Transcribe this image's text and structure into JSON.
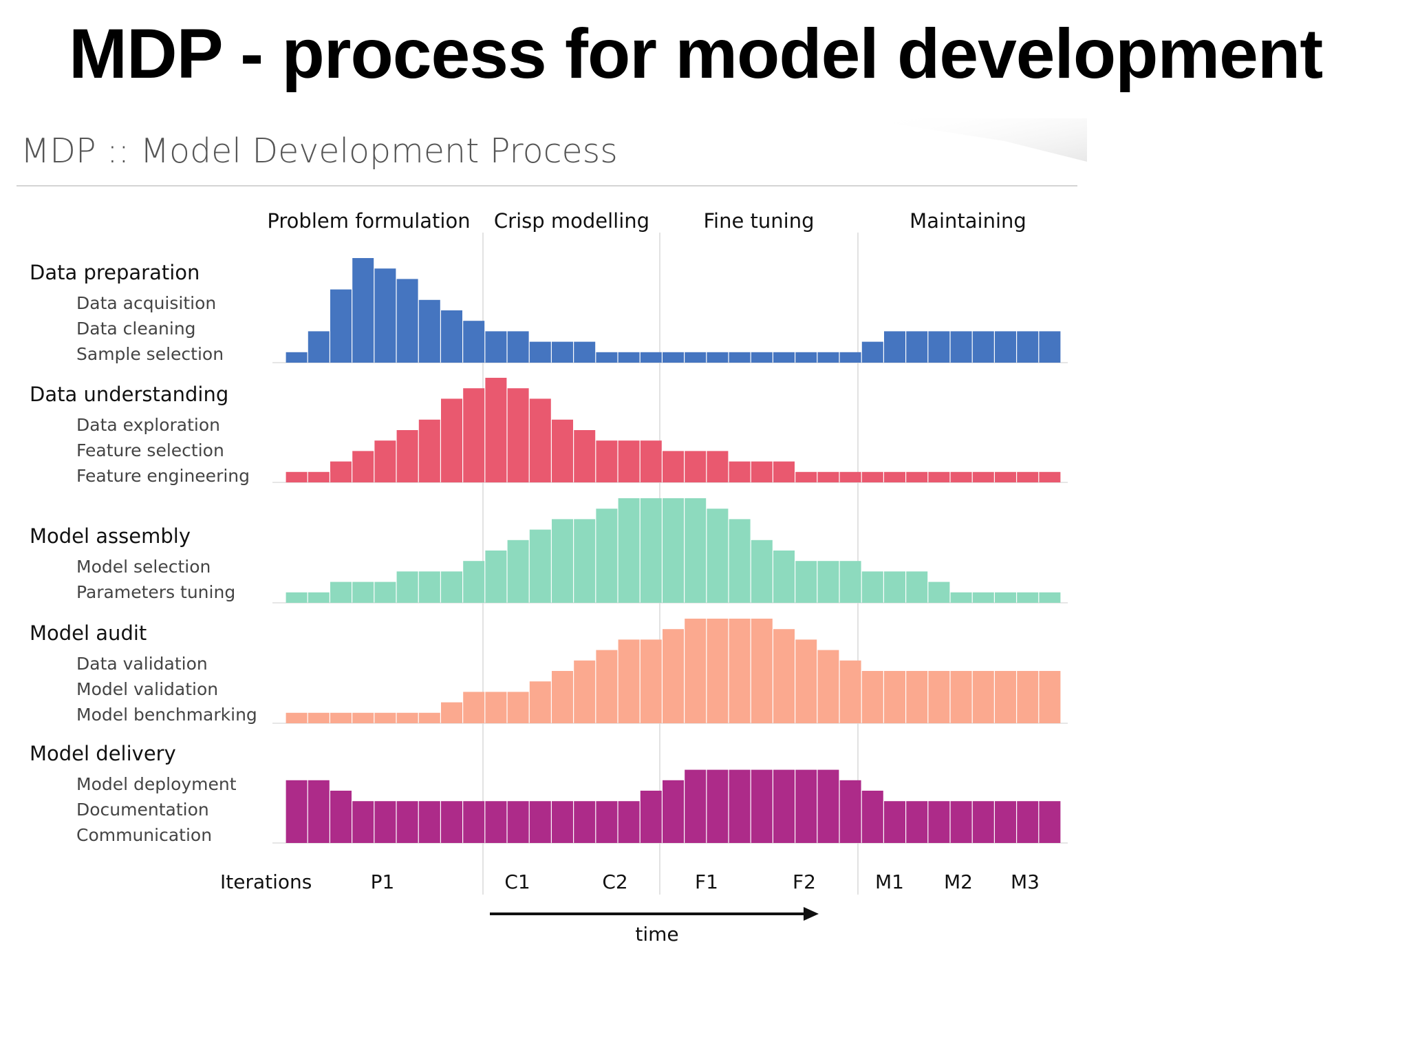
{
  "slide": {
    "title": "MDP - process for model development"
  },
  "chart_data": {
    "type": "bar",
    "title": "MDP :: Model Development Process",
    "phases": [
      "Problem formulation",
      "Crisp modelling",
      "Fine tuning",
      "Maintaining"
    ],
    "iterations_label": "Iterations",
    "iterations": [
      "P1",
      "C1",
      "C2",
      "F1",
      "F2",
      "M1",
      "M2",
      "M3"
    ],
    "time_label": "time",
    "grid": false,
    "legend": "none",
    "categories": [
      "1",
      "2",
      "3",
      "4",
      "5",
      "6",
      "7",
      "8",
      "9",
      "10",
      "11",
      "12",
      "13",
      "14",
      "15",
      "16",
      "17",
      "18",
      "19",
      "20",
      "21",
      "22",
      "23",
      "24",
      "25",
      "26",
      "27",
      "28",
      "29",
      "30",
      "31",
      "32",
      "33",
      "34",
      "35"
    ],
    "series": [
      {
        "name": "Data preparation",
        "details": [
          "Data acquisition",
          "Data cleaning",
          "Sample selection"
        ],
        "color": "#4575c0",
        "values": [
          1,
          3,
          7,
          10,
          9,
          8,
          6,
          5,
          4,
          3,
          3,
          2,
          2,
          2,
          1,
          1,
          1,
          1,
          1,
          1,
          1,
          1,
          1,
          1,
          1,
          1,
          2,
          3,
          3,
          3,
          3,
          3,
          3,
          3,
          3
        ]
      },
      {
        "name": "Data understanding",
        "details": [
          "Data exploration",
          "Feature selection",
          "Feature engineering"
        ],
        "color": "#e9596f",
        "values": [
          1,
          1,
          2,
          3,
          4,
          5,
          6,
          8,
          9,
          10,
          9,
          8,
          6,
          5,
          4,
          4,
          4,
          3,
          3,
          3,
          2,
          2,
          2,
          1,
          1,
          1,
          1,
          1,
          1,
          1,
          1,
          1,
          1,
          1,
          1
        ]
      },
      {
        "name": "Model assembly",
        "details": [
          "Model selection",
          "Parameters tuning"
        ],
        "color": "#8ddabe",
        "values": [
          1,
          1,
          2,
          2,
          2,
          3,
          3,
          3,
          4,
          5,
          6,
          7,
          8,
          8,
          9,
          10,
          10,
          10,
          10,
          9,
          8,
          6,
          5,
          4,
          4,
          4,
          3,
          3,
          3,
          2,
          1,
          1,
          1,
          1,
          1
        ]
      },
      {
        "name": "Model audit",
        "details": [
          "Data validation",
          "Model validation",
          "Model benchmarking"
        ],
        "color": "#fba98f",
        "values": [
          1,
          1,
          1,
          1,
          1,
          1,
          1,
          2,
          3,
          3,
          3,
          4,
          5,
          6,
          7,
          8,
          8,
          9,
          10,
          10,
          10,
          10,
          9,
          8,
          7,
          6,
          5,
          5,
          5,
          5,
          5,
          5,
          5,
          5,
          5
        ]
      },
      {
        "name": "Model delivery",
        "details": [
          "Model deployment",
          "Documentation",
          "Communication"
        ],
        "color": "#ad2b89",
        "values": [
          6,
          6,
          5,
          4,
          4,
          4,
          4,
          4,
          4,
          4,
          4,
          4,
          4,
          4,
          4,
          4,
          5,
          6,
          7,
          7,
          7,
          7,
          7,
          7,
          7,
          6,
          5,
          4,
          4,
          4,
          4,
          4,
          4,
          4,
          4
        ]
      }
    ]
  }
}
